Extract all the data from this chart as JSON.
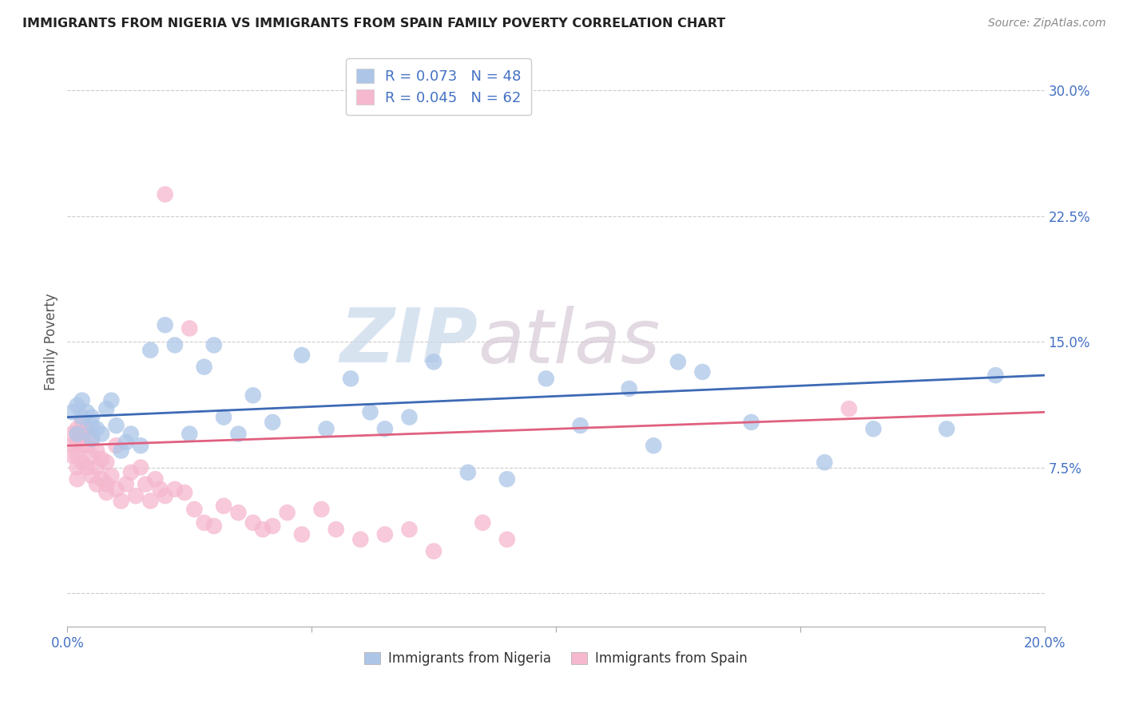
{
  "title": "IMMIGRANTS FROM NIGERIA VS IMMIGRANTS FROM SPAIN FAMILY POVERTY CORRELATION CHART",
  "source": "Source: ZipAtlas.com",
  "ylabel": "Family Poverty",
  "nigeria_label": "Immigrants from Nigeria",
  "spain_label": "Immigrants from Spain",
  "nigeria_R": 0.073,
  "nigeria_N": 48,
  "spain_R": 0.045,
  "spain_N": 62,
  "nigeria_color": "#adc6e8",
  "spain_color": "#f5b8ce",
  "nigeria_line_color": "#3d6ab5",
  "spain_line_color": "#e06080",
  "background_color": "#ffffff",
  "watermark_zip": "ZIP",
  "watermark_atlas": "atlas",
  "xlim": [
    0.0,
    0.2
  ],
  "ylim": [
    -0.02,
    0.32
  ],
  "yticks": [
    0.0,
    0.075,
    0.15,
    0.225,
    0.3
  ],
  "ytick_labels": [
    "",
    "7.5%",
    "15.0%",
    "22.5%",
    "30.0%"
  ],
  "xtick_positions": [
    0.0,
    0.05,
    0.1,
    0.15,
    0.2
  ],
  "nigeria_line_x0": 0.0,
  "nigeria_line_y0": 0.105,
  "nigeria_line_x1": 0.2,
  "nigeria_line_y1": 0.13,
  "spain_line_x0": 0.0,
  "spain_line_y0": 0.088,
  "spain_line_x1": 0.2,
  "spain_line_y1": 0.108,
  "nigeria_x": [
    0.001,
    0.002,
    0.002,
    0.003,
    0.003,
    0.004,
    0.005,
    0.005,
    0.005,
    0.006,
    0.007,
    0.008,
    0.009,
    0.01,
    0.011,
    0.012,
    0.013,
    0.015,
    0.017,
    0.02,
    0.022,
    0.025,
    0.028,
    0.03,
    0.032,
    0.035,
    0.038,
    0.042,
    0.048,
    0.053,
    0.058,
    0.062,
    0.065,
    0.07,
    0.075,
    0.082,
    0.09,
    0.098,
    0.105,
    0.115,
    0.12,
    0.125,
    0.13,
    0.14,
    0.155,
    0.165,
    0.18,
    0.19
  ],
  "nigeria_y": [
    0.108,
    0.112,
    0.095,
    0.105,
    0.115,
    0.108,
    0.092,
    0.105,
    0.1,
    0.098,
    0.095,
    0.11,
    0.115,
    0.1,
    0.085,
    0.09,
    0.095,
    0.088,
    0.145,
    0.16,
    0.148,
    0.095,
    0.135,
    0.148,
    0.105,
    0.095,
    0.118,
    0.102,
    0.142,
    0.098,
    0.128,
    0.108,
    0.098,
    0.105,
    0.138,
    0.072,
    0.068,
    0.128,
    0.1,
    0.122,
    0.088,
    0.138,
    0.132,
    0.102,
    0.078,
    0.098,
    0.098,
    0.13
  ],
  "spain_x": [
    0.001,
    0.001,
    0.001,
    0.002,
    0.002,
    0.002,
    0.002,
    0.002,
    0.003,
    0.003,
    0.003,
    0.003,
    0.004,
    0.004,
    0.004,
    0.005,
    0.005,
    0.005,
    0.006,
    0.006,
    0.006,
    0.007,
    0.007,
    0.008,
    0.008,
    0.008,
    0.009,
    0.01,
    0.01,
    0.011,
    0.012,
    0.013,
    0.014,
    0.015,
    0.016,
    0.017,
    0.018,
    0.019,
    0.02,
    0.022,
    0.024,
    0.026,
    0.028,
    0.03,
    0.032,
    0.035,
    0.038,
    0.04,
    0.042,
    0.045,
    0.048,
    0.052,
    0.055,
    0.06,
    0.065,
    0.07,
    0.075,
    0.085,
    0.09,
    0.16,
    0.02,
    0.025
  ],
  "spain_y": [
    0.095,
    0.088,
    0.082,
    0.098,
    0.09,
    0.082,
    0.075,
    0.068,
    0.102,
    0.095,
    0.088,
    0.078,
    0.098,
    0.088,
    0.075,
    0.092,
    0.082,
    0.07,
    0.085,
    0.075,
    0.065,
    0.08,
    0.068,
    0.078,
    0.065,
    0.06,
    0.07,
    0.088,
    0.062,
    0.055,
    0.065,
    0.072,
    0.058,
    0.075,
    0.065,
    0.055,
    0.068,
    0.062,
    0.058,
    0.062,
    0.06,
    0.05,
    0.042,
    0.04,
    0.052,
    0.048,
    0.042,
    0.038,
    0.04,
    0.048,
    0.035,
    0.05,
    0.038,
    0.032,
    0.035,
    0.038,
    0.025,
    0.042,
    0.032,
    0.11,
    0.238,
    0.158
  ]
}
